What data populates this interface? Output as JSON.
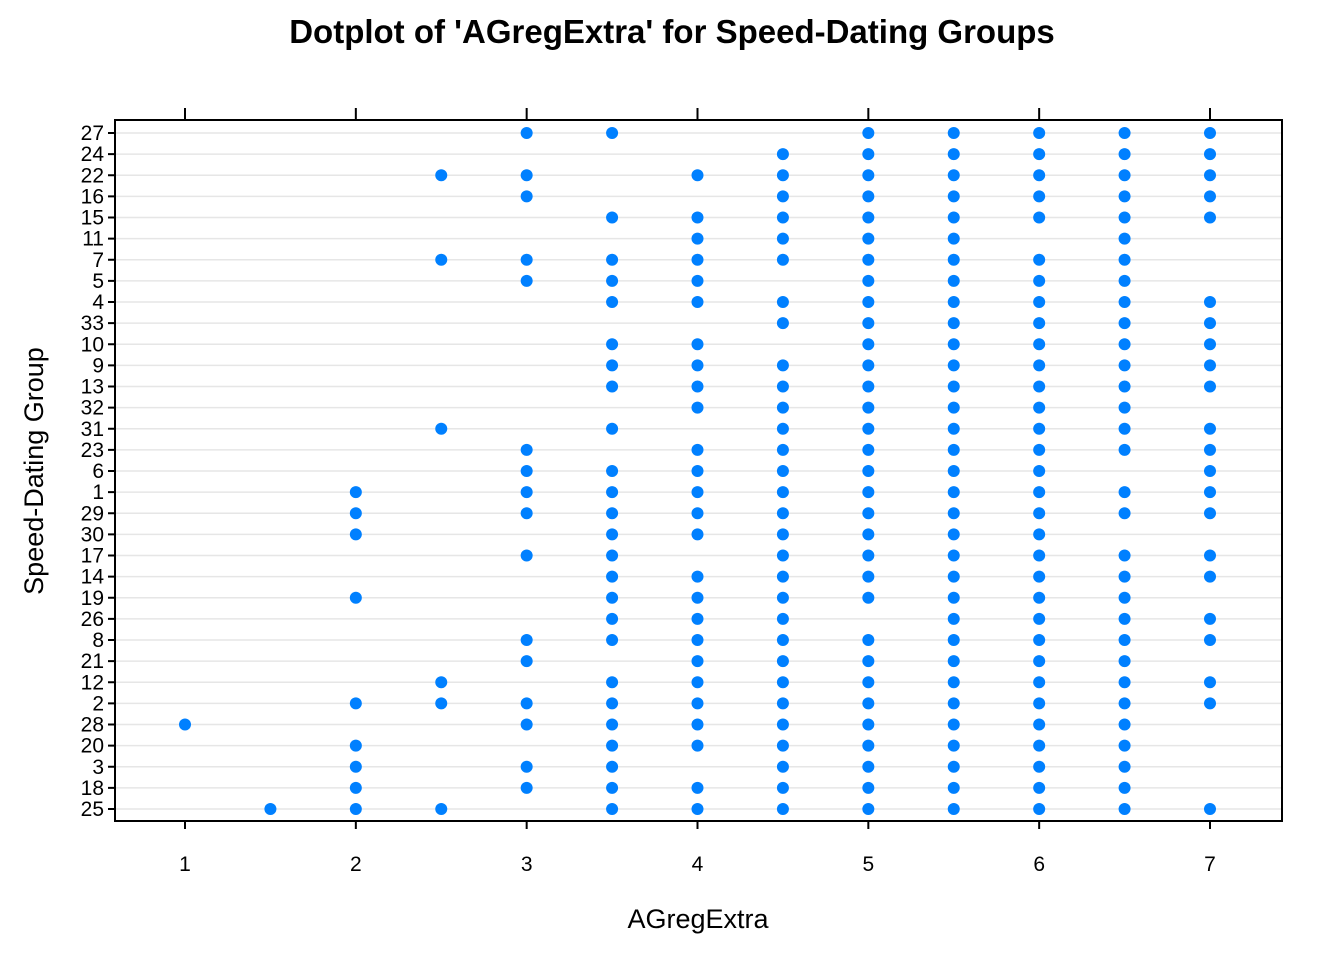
{
  "chart_data": {
    "type": "scatter",
    "title": "Dotplot of 'AGregExtra' for Speed-Dating Groups",
    "xlabel": "AGregExtra",
    "ylabel": "Speed-Dating Group",
    "xlim": [
      0.6,
      7.4
    ],
    "xticks": [
      1,
      2,
      3,
      4,
      5,
      6,
      7
    ],
    "grid": true,
    "legend": "none",
    "point_color": "#0080ff",
    "groups": [
      "25",
      "18",
      "3",
      "20",
      "28",
      "2",
      "12",
      "21",
      "8",
      "26",
      "19",
      "14",
      "17",
      "30",
      "29",
      "1",
      "6",
      "23",
      "31",
      "32",
      "13",
      "9",
      "10",
      "33",
      "4",
      "5",
      "7",
      "11",
      "15",
      "16",
      "22",
      "24",
      "27"
    ],
    "series": [
      {
        "group": "27",
        "x": [
          3,
          3.5,
          5,
          5.5,
          6,
          6.5,
          7
        ]
      },
      {
        "group": "24",
        "x": [
          4.5,
          5,
          5.5,
          6,
          6.5,
          7
        ]
      },
      {
        "group": "22",
        "x": [
          2.5,
          3,
          4,
          4.5,
          5,
          5.5,
          6,
          6.5,
          7
        ]
      },
      {
        "group": "16",
        "x": [
          3,
          4.5,
          5,
          5.5,
          6,
          6.5,
          7
        ]
      },
      {
        "group": "15",
        "x": [
          3.5,
          4,
          4.5,
          5,
          5.5,
          6,
          6.5,
          7
        ]
      },
      {
        "group": "11",
        "x": [
          4,
          4.5,
          5,
          5.5,
          6.5
        ]
      },
      {
        "group": "7",
        "x": [
          2.5,
          3,
          3.5,
          4,
          4.5,
          5,
          5.5,
          6,
          6.5
        ]
      },
      {
        "group": "5",
        "x": [
          3,
          3.5,
          4,
          5,
          5.5,
          6,
          6.5
        ]
      },
      {
        "group": "4",
        "x": [
          3.5,
          4,
          4.5,
          5,
          5.5,
          6,
          6.5,
          7
        ]
      },
      {
        "group": "33",
        "x": [
          4.5,
          5,
          5.5,
          6,
          6.5,
          7
        ]
      },
      {
        "group": "10",
        "x": [
          3.5,
          4,
          5,
          5.5,
          6,
          6.5,
          7
        ]
      },
      {
        "group": "9",
        "x": [
          3.5,
          4,
          4.5,
          5,
          5.5,
          6,
          6.5,
          7
        ]
      },
      {
        "group": "13",
        "x": [
          3.5,
          4,
          4.5,
          5,
          5.5,
          6,
          6.5,
          7
        ]
      },
      {
        "group": "32",
        "x": [
          4,
          4.5,
          5,
          5.5,
          6,
          6.5
        ]
      },
      {
        "group": "31",
        "x": [
          2.5,
          3.5,
          4.5,
          5,
          5.5,
          6,
          6.5,
          7
        ]
      },
      {
        "group": "23",
        "x": [
          3,
          4,
          4.5,
          5,
          5.5,
          6,
          6.5,
          7
        ]
      },
      {
        "group": "6",
        "x": [
          3,
          3.5,
          4,
          4.5,
          5,
          5.5,
          6,
          7
        ]
      },
      {
        "group": "1",
        "x": [
          2,
          3,
          3.5,
          4,
          4.5,
          5,
          5.5,
          6,
          6.5,
          7
        ]
      },
      {
        "group": "29",
        "x": [
          2,
          3,
          3.5,
          4,
          4.5,
          5,
          5.5,
          6,
          6.5,
          7
        ]
      },
      {
        "group": "30",
        "x": [
          2,
          3.5,
          4,
          4.5,
          5,
          5.5,
          6
        ]
      },
      {
        "group": "17",
        "x": [
          3,
          3.5,
          4.5,
          5,
          5.5,
          6,
          6.5,
          7
        ]
      },
      {
        "group": "14",
        "x": [
          3.5,
          4,
          4.5,
          5,
          5.5,
          6,
          6.5,
          7
        ]
      },
      {
        "group": "19",
        "x": [
          2,
          3.5,
          4,
          4.5,
          5,
          5.5,
          6,
          6.5
        ]
      },
      {
        "group": "26",
        "x": [
          3.5,
          4,
          4.5,
          5.5,
          6,
          6.5,
          7
        ]
      },
      {
        "group": "8",
        "x": [
          3,
          3.5,
          4,
          4.5,
          5,
          5.5,
          6,
          6.5,
          7
        ]
      },
      {
        "group": "21",
        "x": [
          3,
          4,
          4.5,
          5,
          5.5,
          6,
          6.5
        ]
      },
      {
        "group": "12",
        "x": [
          2.5,
          3.5,
          4,
          4.5,
          5,
          5.5,
          6,
          6.5,
          7
        ]
      },
      {
        "group": "2",
        "x": [
          2,
          2.5,
          3,
          3.5,
          4,
          4.5,
          5,
          5.5,
          6,
          6.5,
          7
        ]
      },
      {
        "group": "28",
        "x": [
          1,
          3,
          3.5,
          4,
          4.5,
          5,
          5.5,
          6,
          6.5
        ]
      },
      {
        "group": "20",
        "x": [
          2,
          3.5,
          4,
          4.5,
          5,
          5.5,
          6,
          6.5
        ]
      },
      {
        "group": "3",
        "x": [
          2,
          3,
          3.5,
          4.5,
          5,
          5.5,
          6,
          6.5
        ]
      },
      {
        "group": "18",
        "x": [
          2,
          3,
          3.5,
          4,
          4.5,
          5,
          5.5,
          6,
          6.5
        ]
      },
      {
        "group": "25",
        "x": [
          1.5,
          2,
          2.5,
          3.5,
          4,
          4.5,
          5,
          5.5,
          6,
          6.5,
          7
        ]
      }
    ]
  }
}
